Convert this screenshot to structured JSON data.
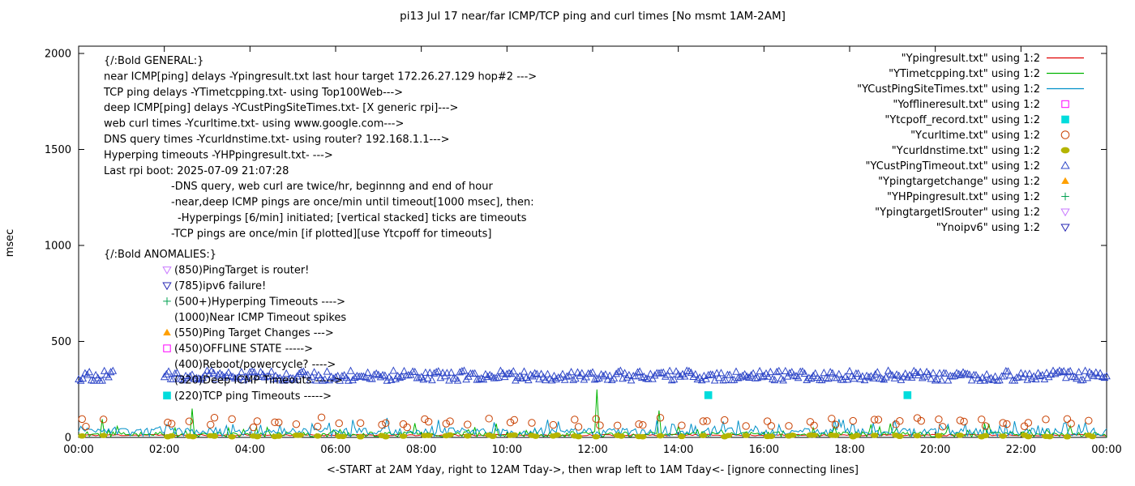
{
  "chart_data": {
    "type": "line",
    "title": "pi13 Jul 17  near/far ICMP/TCP ping and curl times [No msmt 1AM-2AM]",
    "ylabel": "msec",
    "xlabel": "<-START at 2AM Yday, right to 12AM Tday->, then wrap left to 1AM Tday<- [ignore connecting lines]",
    "ylim": [
      0,
      2000
    ],
    "yticks": [
      0,
      500,
      1000,
      1500,
      2000
    ],
    "xticks_hours": [
      0,
      2,
      4,
      6,
      8,
      10,
      12,
      14,
      16,
      18,
      20,
      22,
      24
    ],
    "xtick_labels": [
      "00:00",
      "02:00",
      "04:00",
      "06:00",
      "08:00",
      "10:00",
      "12:00",
      "14:00",
      "16:00",
      "18:00",
      "20:00",
      "22:00",
      "00:00"
    ],
    "grid": false,
    "legend_position": "top-right",
    "no_measurement_gap_hours": [
      0.83,
      2.0
    ],
    "series": [
      {
        "name": "Ypingresult",
        "legend_label": "\"Ypingresult.txt\" using 1:2",
        "color": "#e00000",
        "style": "line",
        "procedural": {
          "kind": "noisy",
          "base": 12,
          "amp": 4,
          "spike_prob": 0,
          "spike_amp": 0,
          "step_min": 4,
          "seed": 11
        }
      },
      {
        "name": "YTimetcpping",
        "legend_label": "\"YTimetcpping.txt\" using 1:2",
        "color": "#00b400",
        "style": "line",
        "procedural": {
          "kind": "noisy",
          "base": 16,
          "amp": 14,
          "spike_prob": 0.14,
          "spike_amp": 55,
          "step_min": 3,
          "seed": 22
        },
        "extra_spikes": [
          [
            0.55,
            95
          ],
          [
            2.63,
            150
          ],
          [
            12.08,
            250
          ],
          [
            13.55,
            140
          ]
        ]
      },
      {
        "name": "YCustPingSiteTimes",
        "legend_label": "\"YCustPingSiteTimes.txt\" using 1:2",
        "color": "#0090c8",
        "style": "line",
        "procedural": {
          "kind": "noisy",
          "base": 28,
          "amp": 22,
          "spike_prob": 0.15,
          "spike_amp": 55,
          "step_min": 3,
          "seed": 33
        }
      },
      {
        "name": "Yofflineresult",
        "legend_label": "\"Yofflineresult.txt\" using 1:2",
        "color": "#ff00ff",
        "style": "points",
        "marker": "square-open",
        "points": []
      },
      {
        "name": "Ytcpoff_record",
        "legend_label": "\"Ytcpoff_record.txt\" using 1:2",
        "color": "#00dcdc",
        "style": "points",
        "marker": "square-filled",
        "points": [
          [
            14.7,
            220
          ],
          [
            19.35,
            220
          ]
        ]
      },
      {
        "name": "Ycurltime",
        "legend_label": "\"Ycurltime.txt\" using 1:2",
        "color": "#c84000",
        "style": "points",
        "marker": "circle-open",
        "procedural": {
          "kind": "halfhour",
          "base": 78,
          "amp": 26,
          "seed": 44
        }
      },
      {
        "name": "Ycurldnstime",
        "legend_label": "\"Ycurldnstime.txt\" using 1:2",
        "color": "#b4b400",
        "style": "points",
        "marker": "circle-filled",
        "procedural": {
          "kind": "halfhour",
          "base": 8,
          "amp": 5,
          "seed": 55
        }
      },
      {
        "name": "YCustPingTimeout",
        "legend_label": "\"YCustPingTimeout.txt\" using 1:2",
        "color": "#3048c8",
        "style": "points",
        "marker": "triangle-open",
        "procedural": {
          "kind": "band",
          "y": 320,
          "jitter": 26,
          "step_min": 3,
          "seed": 66
        }
      },
      {
        "name": "Ypingtargetchange",
        "legend_label": "\"Ypingtargetchange\" using 1:2",
        "color": "#ffa000",
        "style": "points",
        "marker": "triangle-filled",
        "points": []
      },
      {
        "name": "YHPpingresult",
        "legend_label": "\"YHPpingresult.txt\" using 1:2",
        "color": "#00a050",
        "style": "points",
        "marker": "plus",
        "points": []
      },
      {
        "name": "YpingtargetISrouter",
        "legend_label": "\"YpingtargetISrouter\" using 1:2",
        "color": "#c878ff",
        "style": "points",
        "marker": "triangle-down-open",
        "points": []
      },
      {
        "name": "Ynoipv6",
        "legend_label": "\"Ynoipv6\" using 1:2",
        "color": "#2828b4",
        "style": "points",
        "marker": "triangle-down-open",
        "points": []
      }
    ]
  },
  "annotations": {
    "general": {
      "heading": "{/:Bold GENERAL:}",
      "lines": [
        "near ICMP[ping] delays -Ypingresult.txt last hour target 172.26.27.129 hop#2 --->",
        "TCP ping delays -YTimetcpping.txt- using Top100Web--->",
        "deep ICMP[ping] delays -YCustPingSiteTimes.txt- [X generic rpi]--->",
        "web curl times -Ycurltime.txt- using www.google.com--->",
        "DNS query times -Ycurldnstime.txt- using router? 192.168.1.1--->",
        "Hyperping timeouts -YHPpingresult.txt- --->",
        "Last rpi boot: 2025-07-09 21:07:28"
      ],
      "sub_lines": [
        "-DNS query, web curl are twice/hr, beginnng and end of hour",
        "-near,deep ICMP pings are once/min until timeout[1000 msec], then:",
        "-Hyperpings [6/min] initiated; [vertical stacked] ticks are timeouts",
        "-TCP pings are once/min [if plotted][use Ytcpoff for timeouts]"
      ]
    },
    "anomalies": {
      "heading": "{/:Bold ANOMALIES:}",
      "items": [
        {
          "marker": "triangle-down-open",
          "color": "#c878ff",
          "text": "(850)PingTarget is router!"
        },
        {
          "marker": "triangle-down-open",
          "color": "#2828b4",
          "text": "(785)ipv6 failure!"
        },
        {
          "marker": "plus",
          "color": "#00a050",
          "text": "(500+)Hyperping Timeouts ---->"
        },
        {
          "marker": null,
          "color": null,
          "text": "(1000)Near ICMP Timeout spikes"
        },
        {
          "marker": "triangle-filled",
          "color": "#ffa000",
          "text": "(550)Ping Target Changes --->"
        },
        {
          "marker": "square-open",
          "color": "#ff00ff",
          "text": "(450)OFFLINE STATE ----->"
        },
        {
          "marker": null,
          "color": null,
          "text": "(400)Reboot/powercycle? ---->"
        },
        {
          "marker": null,
          "color": null,
          "text": "(320)Deep ICMP Timeouts ----->"
        },
        {
          "marker": "square-filled",
          "color": "#00dcdc",
          "text": "(220)TCP ping Timeouts ----->"
        }
      ]
    }
  }
}
